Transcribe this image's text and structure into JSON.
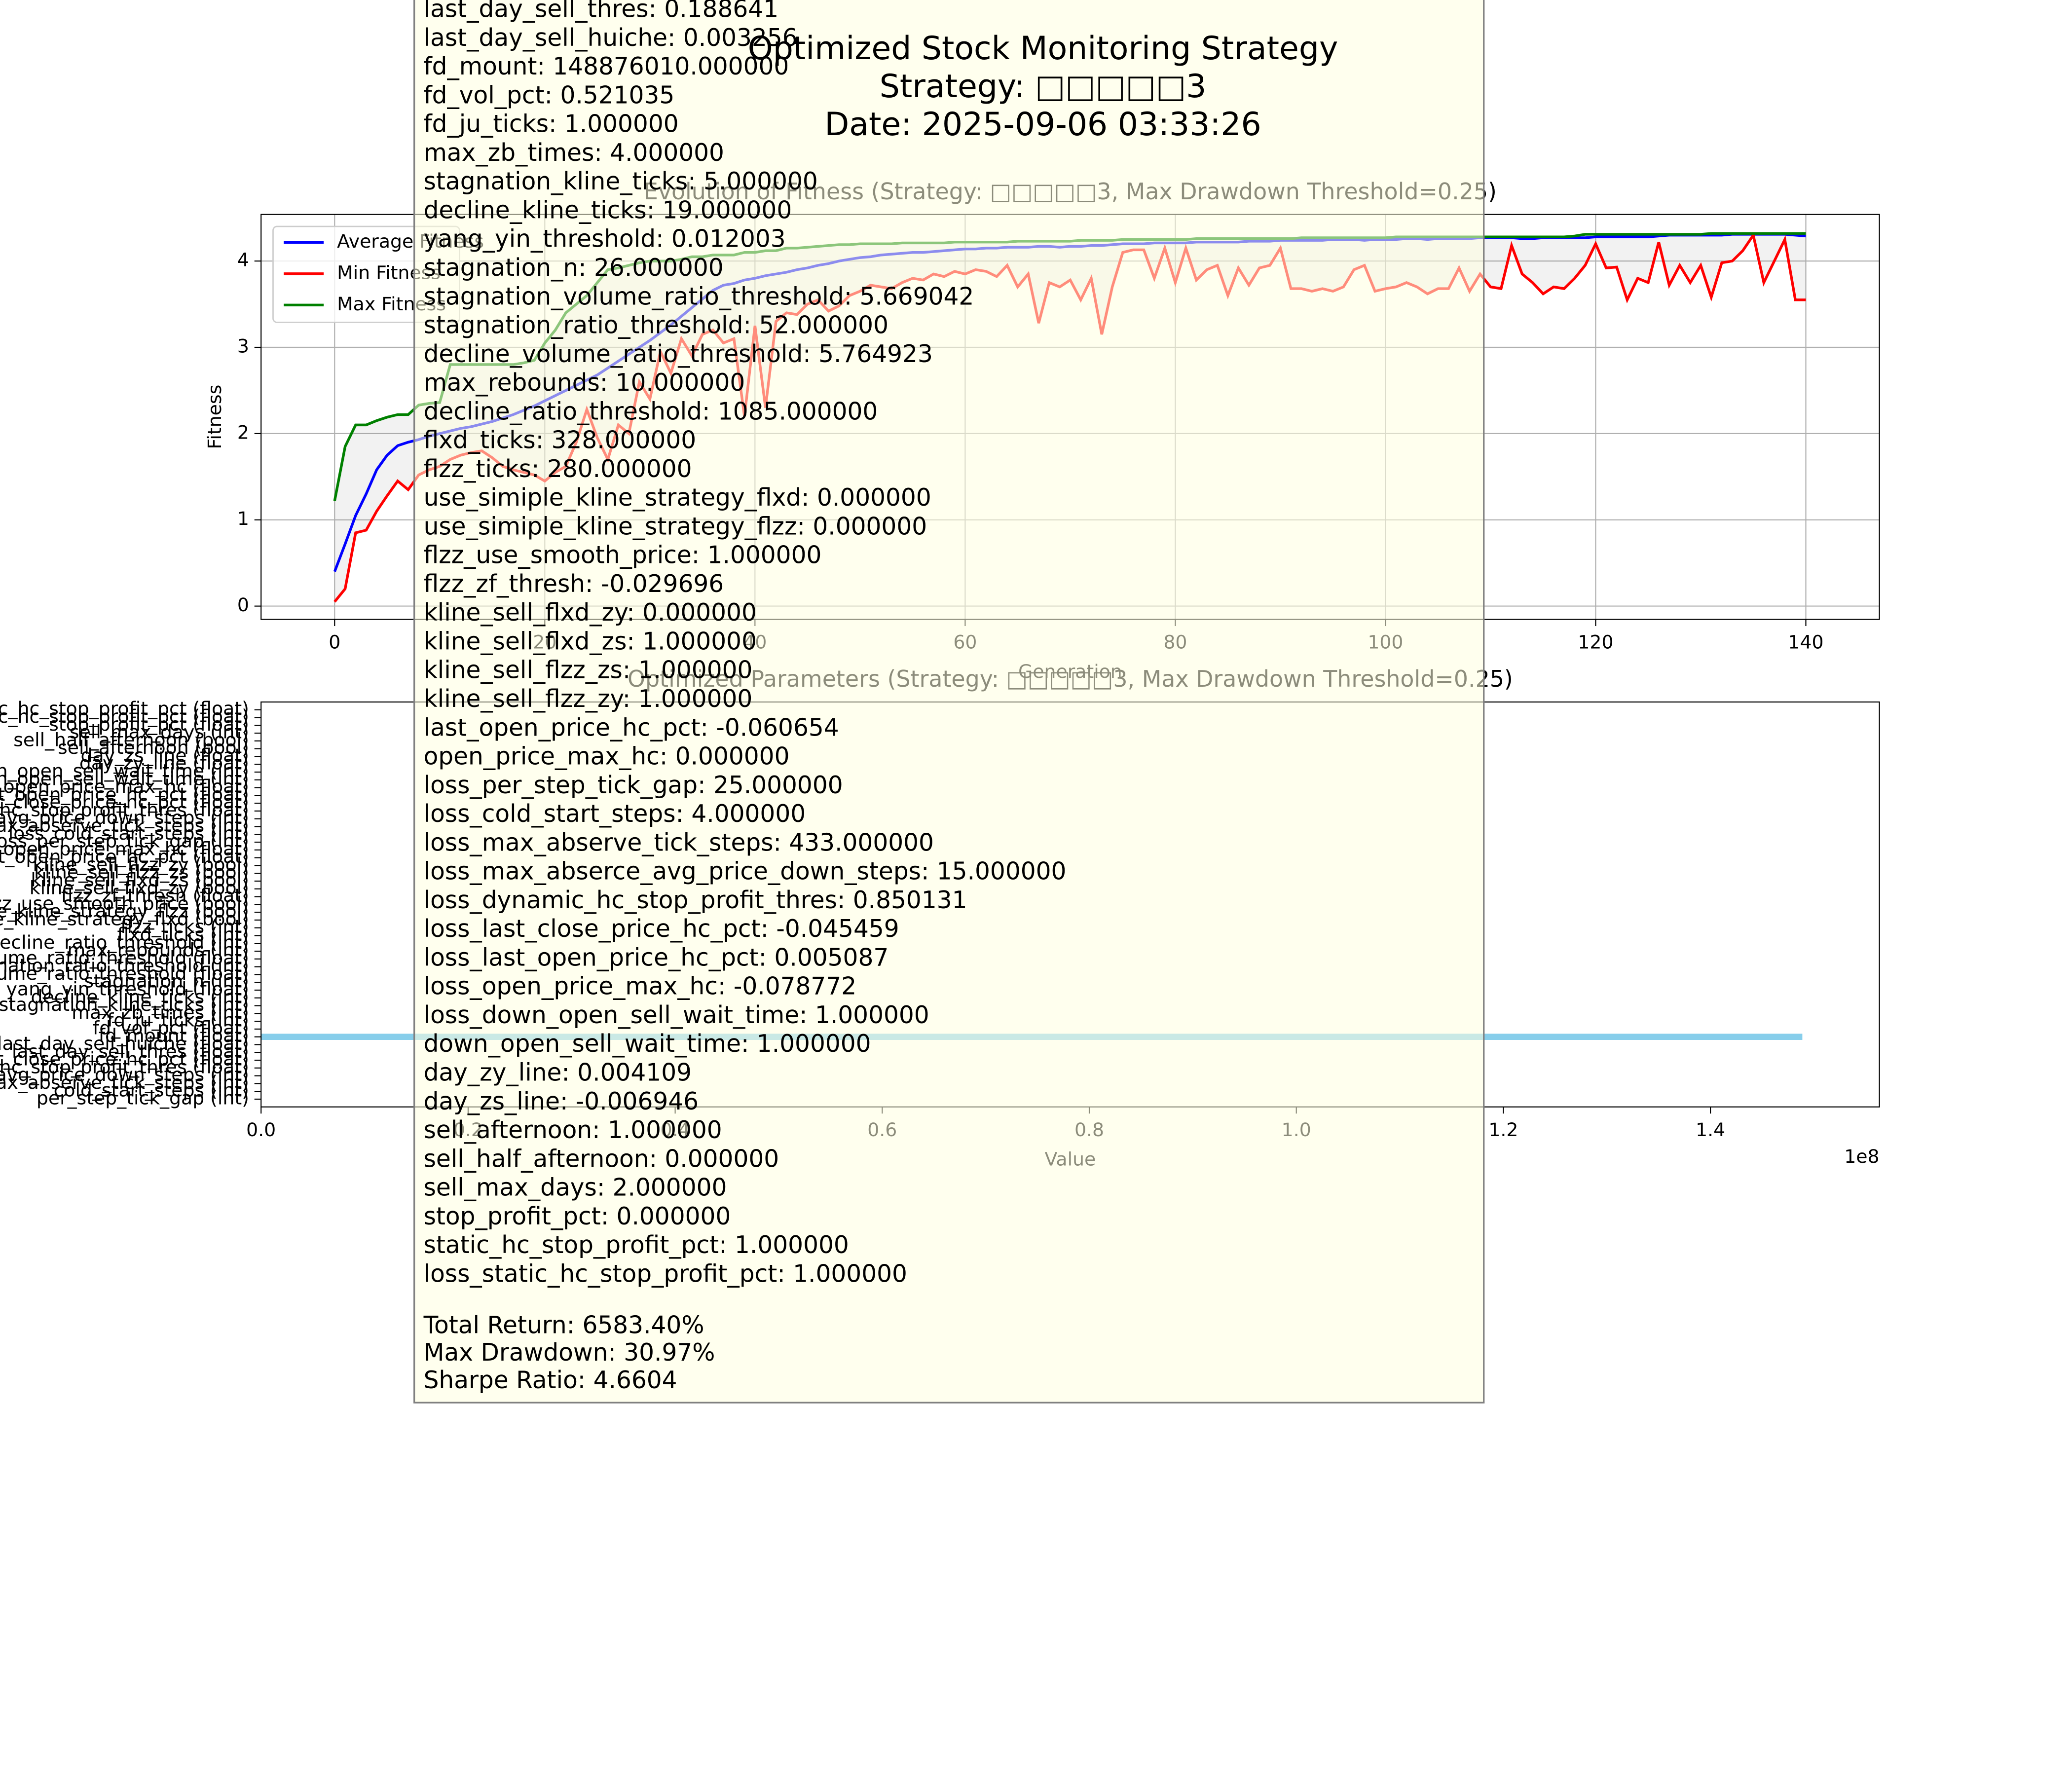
{
  "figure_title": [
    "Optimized Stock Monitoring Strategy",
    "Strategy: □□□□□3",
    "Date: 2025-09-06 03:33:26"
  ],
  "chart_data": [
    {
      "type": "line",
      "title": "Evolution of Fitness (Strategy: □□□□□3, Max Drawdown Threshold=0.25)",
      "x_label": "Generation",
      "y_label": "Fitness",
      "grid": true,
      "legend": "upper left",
      "fill_between": true,
      "xlim": [
        -7,
        147
      ],
      "ylim": [
        -0.154,
        4.54
      ],
      "xticks": [
        0,
        20,
        40,
        60,
        80,
        100,
        120,
        140
      ],
      "yticks": [
        0,
        1,
        2,
        3,
        4
      ],
      "x": [
        0,
        1,
        2,
        3,
        4,
        5,
        6,
        7,
        8,
        9,
        10,
        11,
        12,
        13,
        14,
        15,
        16,
        17,
        18,
        19,
        20,
        21,
        22,
        23,
        24,
        25,
        26,
        27,
        28,
        29,
        30,
        31,
        32,
        33,
        34,
        35,
        36,
        37,
        38,
        39,
        40,
        41,
        42,
        43,
        44,
        45,
        46,
        47,
        48,
        49,
        50,
        51,
        52,
        53,
        54,
        55,
        56,
        57,
        58,
        59,
        60,
        61,
        62,
        63,
        64,
        65,
        66,
        67,
        68,
        69,
        70,
        71,
        72,
        73,
        74,
        75,
        76,
        77,
        78,
        79,
        80,
        81,
        82,
        83,
        84,
        85,
        86,
        87,
        88,
        89,
        90,
        91,
        92,
        93,
        94,
        95,
        96,
        97,
        98,
        99,
        100,
        101,
        102,
        103,
        104,
        105,
        106,
        107,
        108,
        109,
        110,
        111,
        112,
        113,
        114,
        115,
        116,
        117,
        118,
        119,
        120,
        121,
        122,
        123,
        124,
        125,
        126,
        127,
        128,
        129,
        130,
        131,
        132,
        133,
        134,
        135,
        136,
        137,
        138,
        139,
        140
      ],
      "series": [
        {
          "name": "Average Fitness",
          "color": "#0000ff",
          "values": [
            0.4,
            0.72,
            1.05,
            1.3,
            1.58,
            1.75,
            1.86,
            1.9,
            1.93,
            1.97,
            2.0,
            2.03,
            2.06,
            2.08,
            2.11,
            2.14,
            2.18,
            2.22,
            2.27,
            2.32,
            2.38,
            2.44,
            2.5,
            2.56,
            2.62,
            2.68,
            2.76,
            2.84,
            2.92,
            3.0,
            3.08,
            3.17,
            3.26,
            3.36,
            3.46,
            3.56,
            3.66,
            3.72,
            3.74,
            3.78,
            3.8,
            3.83,
            3.85,
            3.87,
            3.9,
            3.92,
            3.95,
            3.97,
            4.0,
            4.02,
            4.04,
            4.05,
            4.07,
            4.08,
            4.09,
            4.1,
            4.1,
            4.11,
            4.12,
            4.13,
            4.14,
            4.14,
            4.15,
            4.15,
            4.16,
            4.16,
            4.16,
            4.17,
            4.17,
            4.16,
            4.17,
            4.17,
            4.18,
            4.18,
            4.19,
            4.2,
            4.2,
            4.2,
            4.21,
            4.21,
            4.21,
            4.21,
            4.22,
            4.22,
            4.22,
            4.22,
            4.22,
            4.23,
            4.23,
            4.23,
            4.24,
            4.24,
            4.24,
            4.24,
            4.24,
            4.25,
            4.25,
            4.25,
            4.24,
            4.25,
            4.25,
            4.25,
            4.26,
            4.26,
            4.25,
            4.26,
            4.26,
            4.26,
            4.26,
            4.27,
            4.27,
            4.27,
            4.27,
            4.26,
            4.26,
            4.27,
            4.27,
            4.27,
            4.27,
            4.27,
            4.28,
            4.28,
            4.28,
            4.28,
            4.28,
            4.28,
            4.29,
            4.3,
            4.3,
            4.3,
            4.3,
            4.3,
            4.3,
            4.31,
            4.31,
            4.31,
            4.31,
            4.31,
            4.31,
            4.3,
            4.29
          ]
        },
        {
          "name": "Min Fitness",
          "color": "#ff0000",
          "values": [
            0.05,
            0.2,
            0.85,
            0.88,
            1.1,
            1.28,
            1.45,
            1.35,
            1.52,
            1.58,
            1.62,
            1.7,
            1.75,
            1.78,
            1.8,
            1.72,
            1.62,
            1.58,
            1.55,
            1.52,
            1.45,
            1.55,
            1.62,
            1.9,
            2.28,
            1.95,
            1.7,
            2.1,
            2.0,
            2.6,
            2.4,
            2.95,
            2.7,
            3.1,
            2.9,
            3.15,
            3.2,
            3.05,
            3.1,
            2.2,
            3.25,
            2.3,
            3.3,
            3.4,
            3.38,
            3.5,
            3.55,
            3.42,
            3.48,
            3.6,
            3.65,
            3.72,
            3.7,
            3.68,
            3.75,
            3.8,
            3.78,
            3.85,
            3.82,
            3.88,
            3.85,
            3.9,
            3.88,
            3.82,
            3.95,
            3.7,
            3.85,
            3.28,
            3.75,
            3.7,
            3.78,
            3.55,
            3.8,
            3.15,
            3.7,
            4.1,
            4.13,
            4.13,
            3.8,
            4.15,
            3.75,
            4.15,
            3.78,
            3.9,
            3.95,
            3.6,
            3.92,
            3.72,
            3.92,
            3.95,
            4.15,
            3.68,
            3.68,
            3.65,
            3.68,
            3.65,
            3.7,
            3.9,
            3.95,
            3.65,
            3.68,
            3.7,
            3.75,
            3.7,
            3.62,
            3.68,
            3.68,
            3.92,
            3.65,
            3.85,
            3.7,
            3.68,
            4.18,
            3.85,
            3.75,
            3.62,
            3.7,
            3.68,
            3.8,
            3.95,
            4.2,
            3.92,
            3.93,
            3.55,
            3.8,
            3.75,
            4.22,
            3.72,
            3.95,
            3.75,
            3.95,
            3.58,
            3.98,
            4.0,
            4.12,
            4.3,
            3.75,
            4.0,
            4.25,
            3.55,
            3.55
          ]
        },
        {
          "name": "Max Fitness",
          "color": "#008000",
          "values": [
            1.22,
            1.85,
            2.1,
            2.1,
            2.15,
            2.19,
            2.22,
            2.22,
            2.33,
            2.35,
            2.36,
            2.8,
            2.8,
            2.8,
            2.8,
            2.8,
            2.8,
            2.8,
            2.82,
            2.85,
            3.05,
            3.2,
            3.4,
            3.5,
            3.6,
            3.75,
            3.9,
            3.92,
            3.95,
            3.98,
            4.0,
            4.0,
            4.0,
            4.02,
            4.05,
            4.05,
            4.07,
            4.07,
            4.07,
            4.1,
            4.1,
            4.12,
            4.12,
            4.15,
            4.15,
            4.16,
            4.17,
            4.18,
            4.19,
            4.19,
            4.2,
            4.2,
            4.2,
            4.2,
            4.21,
            4.21,
            4.21,
            4.21,
            4.21,
            4.22,
            4.22,
            4.22,
            4.22,
            4.22,
            4.22,
            4.23,
            4.23,
            4.23,
            4.23,
            4.23,
            4.23,
            4.24,
            4.24,
            4.24,
            4.24,
            4.25,
            4.25,
            4.25,
            4.25,
            4.25,
            4.25,
            4.25,
            4.26,
            4.26,
            4.26,
            4.26,
            4.26,
            4.26,
            4.26,
            4.26,
            4.26,
            4.26,
            4.27,
            4.27,
            4.27,
            4.27,
            4.27,
            4.27,
            4.27,
            4.27,
            4.27,
            4.28,
            4.28,
            4.28,
            4.28,
            4.28,
            4.28,
            4.28,
            4.28,
            4.28,
            4.28,
            4.28,
            4.28,
            4.28,
            4.28,
            4.28,
            4.28,
            4.28,
            4.29,
            4.31,
            4.31,
            4.31,
            4.31,
            4.31,
            4.31,
            4.31,
            4.31,
            4.31,
            4.31,
            4.31,
            4.31,
            4.32,
            4.32,
            4.32,
            4.32,
            4.32,
            4.32,
            4.32,
            4.32,
            4.32,
            4.32
          ]
        }
      ]
    },
    {
      "type": "barh",
      "title": "Optimized Parameters (Strategy: □□□□□3, Max Drawdown Threshold=0.25)",
      "x_label": "Value",
      "x_offset_label": "1e8",
      "color": "#87ceeb",
      "xlim": [
        0,
        156319810
      ],
      "xticks": [
        {
          "value": 0,
          "label": "0.0"
        },
        {
          "value": 20000000,
          "label": "0.2"
        },
        {
          "value": 40000000,
          "label": "0.4"
        },
        {
          "value": 60000000,
          "label": "0.6"
        },
        {
          "value": 80000000,
          "label": "0.8"
        },
        {
          "value": 100000000,
          "label": "1.0"
        },
        {
          "value": 120000000,
          "label": "1.2"
        },
        {
          "value": 140000000,
          "label": "1.4"
        }
      ],
      "categories": [
        "per_step_tick_gap (int)",
        "cold_start_steps (int)",
        "max_abserve_tick_steps (int)",
        "max_abserce_avg_price_down_steps (int)",
        "dynamic_hc_stop_profit_thres (float)",
        "last_close_price_hc_pct (float)",
        "last_day_sell_thres (float)",
        "last_day_sell_huiche (float)",
        "fd_mount (float)",
        "fd_vol_pct (float)",
        "fd_ju_ticks (int)",
        "max_zb_times (int)",
        "stagnation_kline_ticks (int)",
        "decline_kline_ticks (int)",
        "yang_yin_threshold (float)",
        "stagnation_n (int)",
        "stagnation_volume_ratio_threshold (float)",
        "stagnation_ratio_threshold (int)",
        "decline_volume_ratio_threshold (float)",
        "max_rebounds (int)",
        "decline_ratio_threshold (int)",
        "flxd_ticks (int)",
        "flzz_ticks (int)",
        "use_simiple_kline_strategy_flxd (bool)",
        "use_simiple_kline_strategy_flzz (bool)",
        "flzz_use_smooth_price (bool)",
        "flzz_zf_thresh (float)",
        "kline_sell_flxd_zy (bool)",
        "kline_sell_flxd_zs (bool)",
        "kline_sell_flzz_zs (bool)",
        "kline_sell_flzz_zy (bool)",
        "last_open_price_hc_pct (float)",
        "open_price_max_hc (float)",
        "loss_per_step_tick_gap (int)",
        "loss_cold_start_steps (int)",
        "loss_max_abserve_tick_steps (int)",
        "loss_max_abserce_avg_price_down_steps (int)",
        "loss_dynamic_hc_stop_profit_thres (float)",
        "loss_last_close_price_hc_pct (float)",
        "loss_last_open_price_hc_pct (float)",
        "loss_open_price_max_hc (float)",
        "loss_down_open_sell_wait_time (int)",
        "down_open_sell_wait_time (int)",
        "day_zy_line (float)",
        "day_zs_line (float)",
        "sell_afternoon (bool)",
        "sell_half_afternoon (bool)",
        "sell_max_days (int)",
        "stop_profit_pct (float)",
        "static_hc_stop_profit_pct (float)",
        "loss_static_hc_stop_profit_pct (float)"
      ],
      "values": [
        25,
        4,
        433,
        15,
        0.85,
        -0.045,
        0.188641,
        0.003256,
        148876010,
        0.521035,
        1,
        4,
        5,
        19,
        0.012003,
        26,
        5.669042,
        52,
        5.764923,
        10,
        1085,
        328,
        280,
        0,
        0,
        1,
        -0.029696,
        0,
        1,
        1,
        1,
        -0.060654,
        0,
        25,
        4,
        433,
        15,
        0.850131,
        -0.045459,
        0.005087,
        -0.078772,
        1,
        1,
        0.004109,
        -0.006946,
        1,
        0,
        2,
        0,
        1,
        1
      ]
    }
  ],
  "text_box": {
    "lines": [
      "last_day_sell_thres: 0.188641",
      "last_day_sell_huiche: 0.003256",
      "fd_mount: 148876010.000000",
      "fd_vol_pct: 0.521035",
      "fd_ju_ticks: 1.000000",
      "max_zb_times: 4.000000",
      "stagnation_kline_ticks: 5.000000",
      "decline_kline_ticks: 19.000000",
      "yang_yin_threshold: 0.012003",
      "stagnation_n: 26.000000",
      "stagnation_volume_ratio_threshold: 5.669042",
      "stagnation_ratio_threshold: 52.000000",
      "decline_volume_ratio_threshold: 5.764923",
      "max_rebounds: 10.000000",
      "decline_ratio_threshold: 1085.000000",
      "flxd_ticks: 328.000000",
      "flzz_ticks: 280.000000",
      "use_simiple_kline_strategy_flxd: 0.000000",
      "use_simiple_kline_strategy_flzz: 0.000000",
      "flzz_use_smooth_price: 1.000000",
      "flzz_zf_thresh: -0.029696",
      "kline_sell_flxd_zy: 0.000000",
      "kline_sell_flxd_zs: 1.000000",
      "kline_sell_flzz_zs: 1.000000",
      "kline_sell_flzz_zy: 1.000000",
      "last_open_price_hc_pct: -0.060654",
      "open_price_max_hc: 0.000000",
      "loss_per_step_tick_gap: 25.000000",
      "loss_cold_start_steps: 4.000000",
      "loss_max_abserve_tick_steps: 433.000000",
      "loss_max_abserce_avg_price_down_steps: 15.000000",
      "loss_dynamic_hc_stop_profit_thres: 0.850131",
      "loss_last_close_price_hc_pct: -0.045459",
      "loss_last_open_price_hc_pct: 0.005087",
      "loss_open_price_max_hc: -0.078772",
      "loss_down_open_sell_wait_time: 1.000000",
      "down_open_sell_wait_time: 1.000000",
      "day_zy_line: 0.004109",
      "day_zs_line: -0.006946",
      "sell_afternoon: 1.000000",
      "sell_half_afternoon: 0.000000",
      "sell_max_days: 2.000000",
      "stop_profit_pct: 0.000000",
      "static_hc_stop_profit_pct: 1.000000",
      "loss_static_hc_stop_profit_pct: 1.000000"
    ],
    "stats": [
      "Total Return: 6583.40%",
      "Max Drawdown: 30.97%",
      "Sharpe Ratio: 4.6604"
    ]
  }
}
